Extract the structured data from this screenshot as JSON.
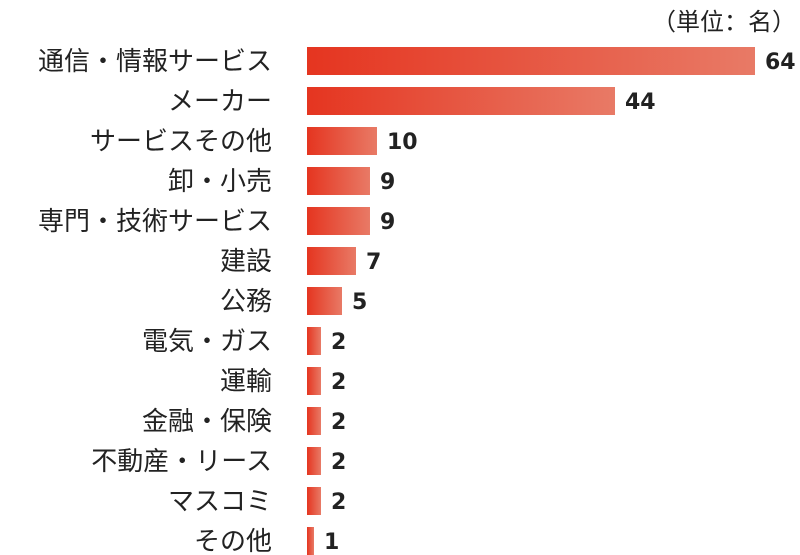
{
  "chart_data": {
    "type": "bar",
    "orientation": "horizontal",
    "unit_note": "（単位：名）",
    "categories": [
      "通信・情報サービス",
      "メーカー",
      "サービスその他",
      "卸・小売",
      "専門・技術サービス",
      "建設",
      "公務",
      "電気・ガス",
      "運輸",
      "金融・保険",
      "不動産・リース",
      "マスコミ",
      "その他"
    ],
    "values": [
      64,
      44,
      10,
      9,
      9,
      7,
      5,
      2,
      2,
      2,
      2,
      2,
      1
    ],
    "xlim": [
      0,
      64
    ],
    "grid": false,
    "legend": "none",
    "colors": {
      "bar_start": "#e53520",
      "bar_end": "#e87a66",
      "text": "#222222"
    }
  }
}
